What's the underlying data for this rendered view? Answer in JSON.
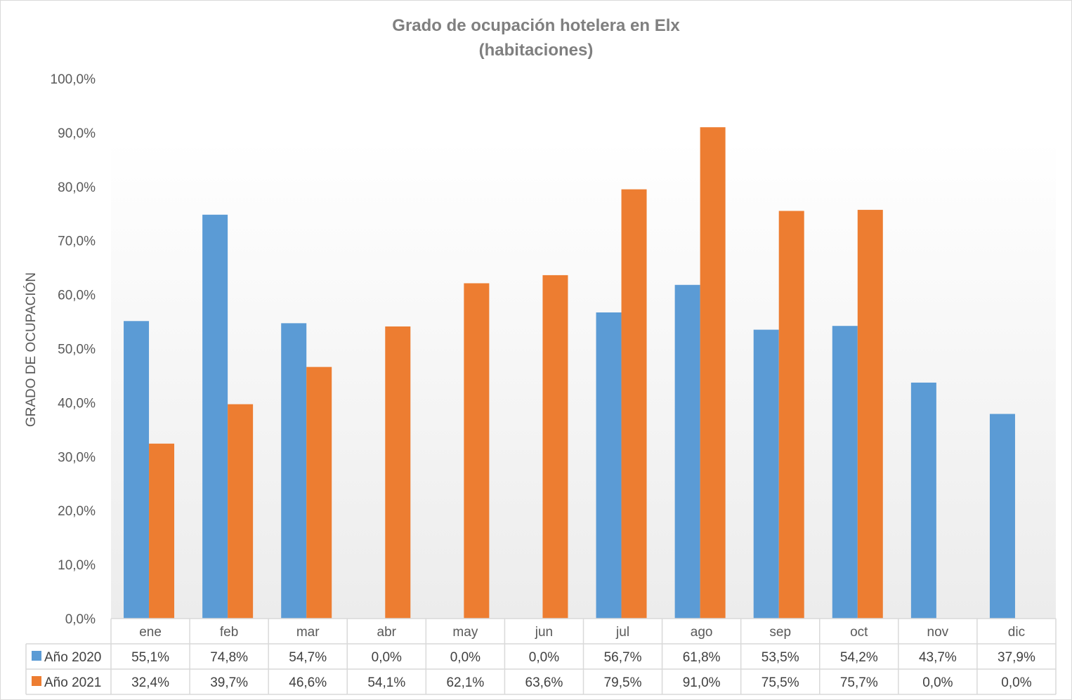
{
  "chart_data": {
    "type": "bar",
    "title": "Grado de ocupación hotelera en Elx",
    "subtitle": "(habitaciones)",
    "ylabel": "GRADO DE OCUPACIÓN",
    "xlabel": "",
    "ylim": [
      0,
      100
    ],
    "yticks": [
      "0,0%",
      "10,0%",
      "20,0%",
      "30,0%",
      "40,0%",
      "50,0%",
      "60,0%",
      "70,0%",
      "80,0%",
      "90,0%",
      "100,0%"
    ],
    "categories": [
      "ene",
      "feb",
      "mar",
      "abr",
      "may",
      "jun",
      "jul",
      "ago",
      "sep",
      "oct",
      "nov",
      "dic"
    ],
    "grid": false,
    "legend": "data-table",
    "series": [
      {
        "name": "Año 2020",
        "color": "#5b9bd5",
        "values": [
          55.1,
          74.8,
          54.7,
          0.0,
          0.0,
          0.0,
          56.7,
          61.8,
          53.5,
          54.2,
          43.7,
          37.9
        ],
        "labels": [
          "55,1%",
          "74,8%",
          "54,7%",
          "0,0%",
          "0,0%",
          "0,0%",
          "56,7%",
          "61,8%",
          "53,5%",
          "54,2%",
          "43,7%",
          "37,9%"
        ]
      },
      {
        "name": "Año 2021",
        "color": "#ed7d31",
        "values": [
          32.4,
          39.7,
          46.6,
          54.1,
          62.1,
          63.6,
          79.5,
          91.0,
          75.5,
          75.7,
          0.0,
          0.0
        ],
        "labels": [
          "32,4%",
          "39,7%",
          "46,6%",
          "54,1%",
          "62,1%",
          "63,6%",
          "79,5%",
          "91,0%",
          "75,5%",
          "75,7%",
          "0,0%",
          "0,0%"
        ]
      }
    ]
  }
}
